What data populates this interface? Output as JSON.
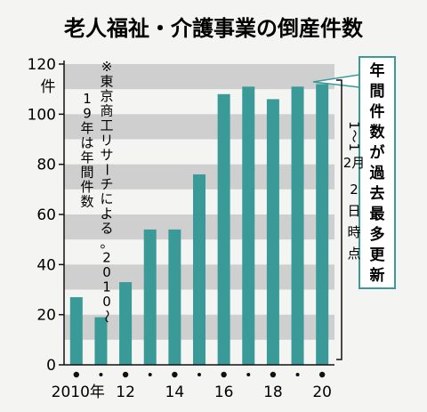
{
  "chart_data": {
    "type": "bar",
    "title": "老人福祉・介護事業の倒産件数",
    "ylabel": "件",
    "ylim": [
      0,
      120
    ],
    "yticks": [
      0,
      20,
      40,
      60,
      80,
      100,
      120
    ],
    "grid": "horizontal-bands",
    "categories": [
      "2010",
      "2011",
      "2012",
      "2013",
      "2014",
      "2015",
      "2016",
      "2017",
      "2018",
      "2019",
      "2020"
    ],
    "xtick_labels": [
      "2010年",
      "",
      "12",
      "",
      "14",
      "",
      "16",
      "",
      "18",
      "",
      "20"
    ],
    "values": [
      27,
      19,
      33,
      54,
      54,
      76,
      108,
      111,
      106,
      111,
      112
    ],
    "bar_color": "#3a9a98",
    "note": "※東京商工リサーチによる。2010〜19年は年間件数",
    "annotation_box": "年間件数が過去最多更新",
    "annotation_range": "1〜12月2日時点"
  }
}
